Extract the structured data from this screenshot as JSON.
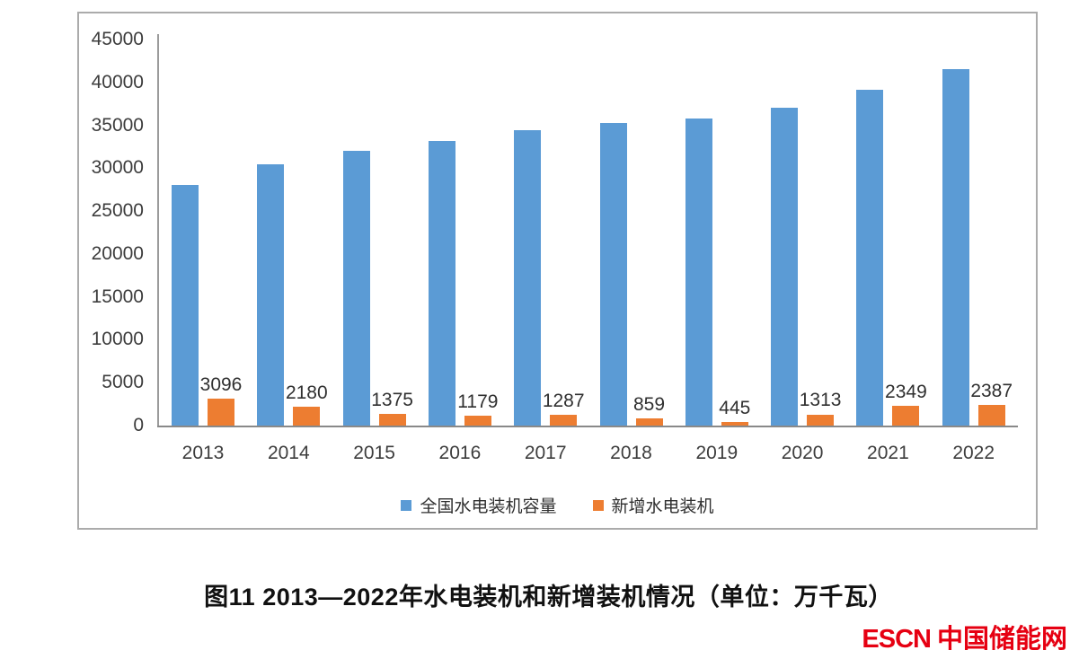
{
  "figure": {
    "caption": "图11  2013—2022年水电装机和新增装机情况（单位：万千瓦）"
  },
  "logo": {
    "text_en": "ESCN",
    "text_zh": "中国储能网",
    "color": "#e60012"
  },
  "chart_data": {
    "type": "bar",
    "title": "",
    "xlabel": "",
    "ylabel": "",
    "categories": [
      "2013",
      "2014",
      "2015",
      "2016",
      "2017",
      "2018",
      "2019",
      "2020",
      "2021",
      "2022"
    ],
    "series": [
      {
        "name": "全国水电装机容量",
        "color": "#5b9bd5",
        "values": [
          28000,
          30500,
          32000,
          33200,
          34400,
          35300,
          35800,
          37000,
          39100,
          41500
        ]
      },
      {
        "name": "新增水电装机",
        "color": "#ed7d31",
        "values": [
          3096,
          2180,
          1375,
          1179,
          1287,
          859,
          445,
          1313,
          2349,
          2387
        ],
        "data_labels": true
      }
    ],
    "ylim": [
      0,
      45000
    ],
    "y_ticks": [
      0,
      5000,
      10000,
      15000,
      20000,
      25000,
      30000,
      35000,
      40000,
      45000
    ],
    "grid": false,
    "legend_position": "bottom"
  }
}
